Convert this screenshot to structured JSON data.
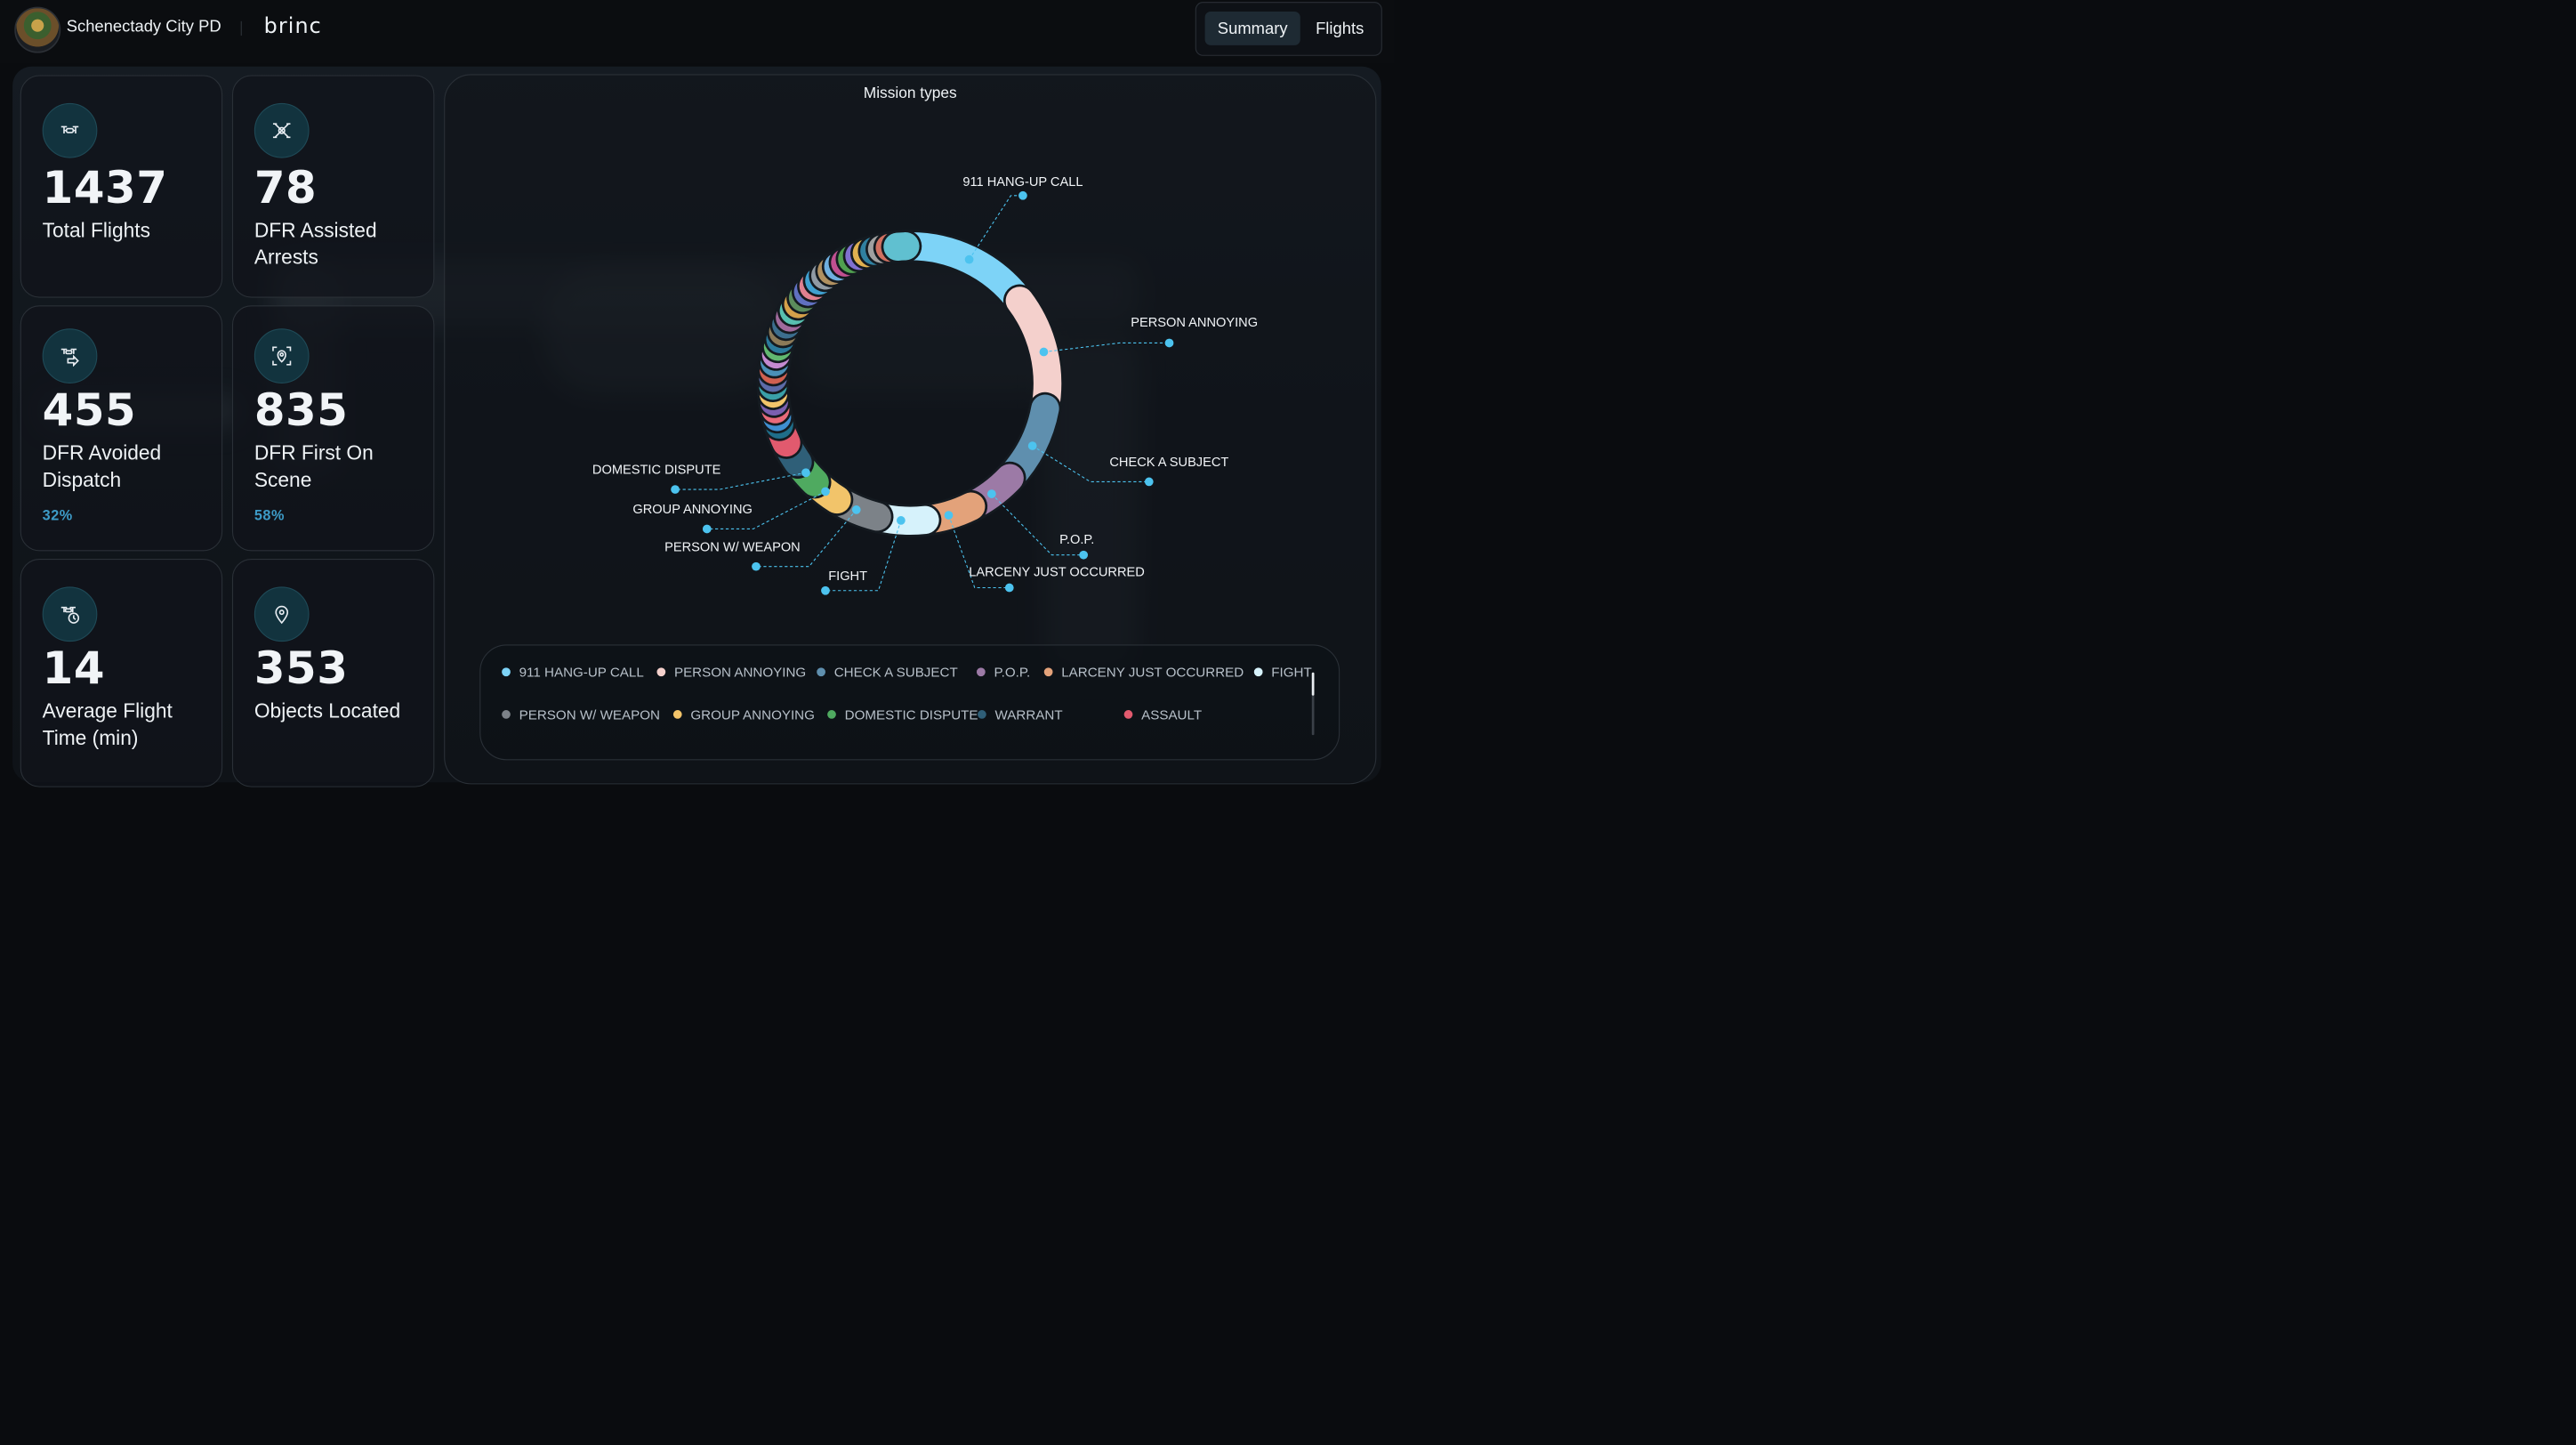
{
  "header": {
    "org_name": "Schenectady City PD",
    "brand": "brinc",
    "tabs": [
      {
        "label": "Summary",
        "active": true
      },
      {
        "label": "Flights",
        "active": false
      }
    ]
  },
  "stats": [
    {
      "value": "1437",
      "label": "Total Flights",
      "icon": "drone-icon"
    },
    {
      "value": "78",
      "label": "DFR Assisted Arrests",
      "icon": "drone-arrest-icon"
    },
    {
      "value": "455",
      "label": "DFR Avoided Dispatch",
      "percent": "32%",
      "icon": "drone-dispatch-icon"
    },
    {
      "value": "835",
      "label": "DFR First On Scene",
      "percent": "58%",
      "icon": "scene-location-icon"
    },
    {
      "value": "14",
      "label": "Average Flight Time (min)",
      "icon": "drone-clock-icon"
    },
    {
      "value": "353",
      "label": "Objects Located",
      "icon": "map-pin-icon"
    }
  ],
  "chart_data": {
    "type": "pie",
    "style": "donut",
    "title": "Mission types",
    "callouts": [
      {
        "label": "911 HANG-UP CALL",
        "color": "#7dd3f7"
      },
      {
        "label": "PERSON ANNOYING",
        "color": "#f4d0cc"
      },
      {
        "label": "CHECK A SUBJECT",
        "color": "#5f8fae"
      },
      {
        "label": "P.O.P.",
        "color": "#9c7aa6"
      },
      {
        "label": "LARCENY JUST OCCURRED",
        "color": "#e3a27a"
      },
      {
        "label": "FIGHT",
        "color": "#d6f2fb"
      },
      {
        "label": "PERSON W/ WEAPON",
        "color": "#7c8288"
      },
      {
        "label": "GROUP ANNOYING",
        "color": "#f2c46a"
      },
      {
        "label": "DOMESTIC DISPUTE",
        "color": "#4faa60"
      }
    ],
    "legend": [
      {
        "label": "911 HANG-UP CALL",
        "color": "#7dd3f7"
      },
      {
        "label": "PERSON ANNOYING",
        "color": "#f4d0cc"
      },
      {
        "label": "CHECK A SUBJECT",
        "color": "#5f8fae"
      },
      {
        "label": "P.O.P.",
        "color": "#9c7aa6"
      },
      {
        "label": "LARCENY JUST OCCURRED",
        "color": "#e3a27a"
      },
      {
        "label": "FIGHT",
        "color": "#d6f2fb"
      },
      {
        "label": "PERSON W/ WEAPON",
        "color": "#7c8288"
      },
      {
        "label": "GROUP ANNOYING",
        "color": "#f2c46a"
      },
      {
        "label": "DOMESTIC DISPUTE",
        "color": "#4faa60"
      },
      {
        "label": "WARRANT",
        "color": "#2f5f78"
      },
      {
        "label": "ASSAULT",
        "color": "#e15a6e"
      }
    ],
    "segments": [
      {
        "name": "911 HANG-UP CALL",
        "value": 15,
        "color": "#7dd3f7"
      },
      {
        "name": "PERSON ANNOYING",
        "value": 13,
        "color": "#f4d0cc"
      },
      {
        "name": "CHECK A SUBJECT",
        "value": 9,
        "color": "#5f8fae"
      },
      {
        "name": "P.O.P.",
        "value": 5.5,
        "color": "#9c7aa6"
      },
      {
        "name": "LARCENY JUST OCCURRED",
        "value": 5.5,
        "color": "#e3a27a"
      },
      {
        "name": "FIGHT",
        "value": 5.5,
        "color": "#d6f2fb"
      },
      {
        "name": "PERSON W/ WEAPON",
        "value": 5,
        "color": "#7c8288"
      },
      {
        "name": "GROUP ANNOYING",
        "value": 3.2,
        "color": "#f2c46a"
      },
      {
        "name": "DOMESTIC DISPUTE",
        "value": 3,
        "color": "#4faa60"
      },
      {
        "name": "WARRANT",
        "value": 2.6,
        "color": "#2f5f78"
      },
      {
        "name": "ASSAULT",
        "value": 2.2,
        "color": "#e15a6e"
      }
    ],
    "minor_segment_colors": [
      "#1f6e8a",
      "#3f8fd0",
      "#e86a7a",
      "#7a5fb0",
      "#f2c46a",
      "#3aa0a8",
      "#5c6ba8",
      "#d06050",
      "#4a90b8",
      "#c48ad0",
      "#62b870",
      "#2b7a9c",
      "#8c7a58",
      "#3c6e8e",
      "#a06a9c",
      "#58c0b0",
      "#d4a04a",
      "#5c8c5c",
      "#6070c0",
      "#e08090",
      "#40a0d0",
      "#909aa4",
      "#b09060",
      "#70b0e0",
      "#c05090",
      "#50a050",
      "#8070d0",
      "#e0b050",
      "#3080a0",
      "#a0a0a0",
      "#d07060",
      "#60c0d0"
    ],
    "minor_segment_value": 0.9
  }
}
